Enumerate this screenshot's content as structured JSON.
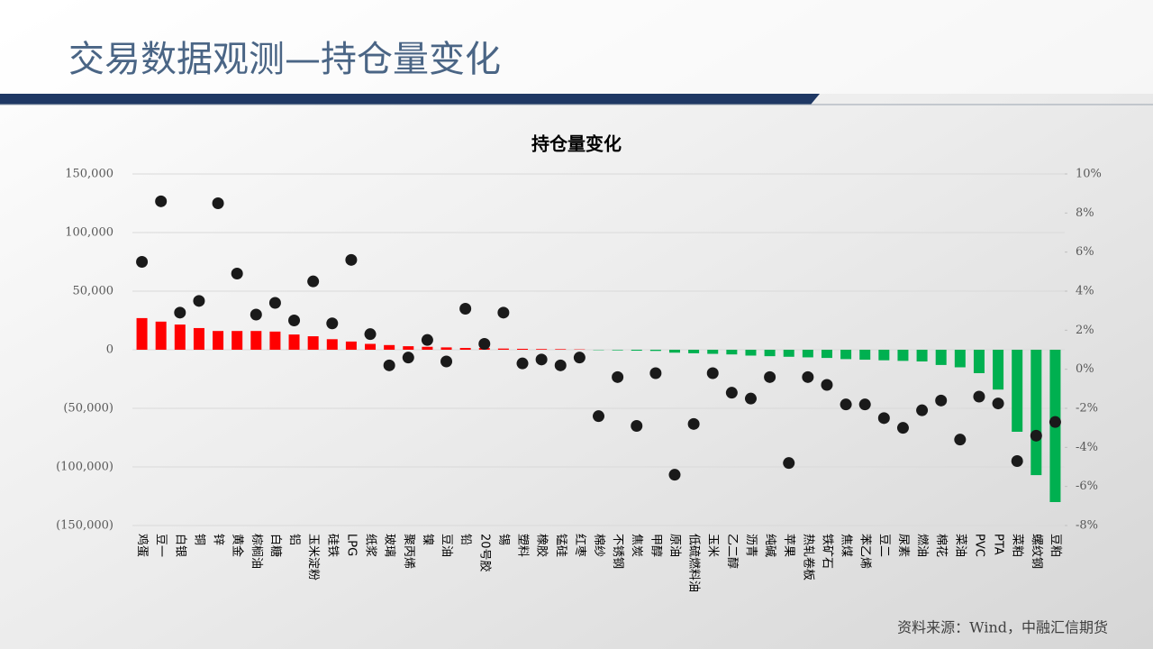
{
  "header": {
    "title": "交易数据观测—持仓量变化"
  },
  "chart_data": {
    "type": "bar",
    "title": "持仓量变化",
    "categories": [
      "鸡蛋",
      "豆一",
      "白银",
      "铜",
      "锌",
      "黄金",
      "棕榈油",
      "白糖",
      "铝",
      "玉米淀粉",
      "硅铁",
      "LPG",
      "纸浆",
      "玻璃",
      "聚丙烯",
      "镍",
      "豆油",
      "铅",
      "20号胶",
      "锡",
      "塑料",
      "橡胶",
      "锰硅",
      "红枣",
      "棉纱",
      "不锈钢",
      "焦炭",
      "甲醇",
      "原油",
      "低硫燃料油",
      "玉米",
      "乙二醇",
      "沥青",
      "纯碱",
      "苹果",
      "热轧卷板",
      "铁矿石",
      "焦煤",
      "苯乙烯",
      "豆二",
      "尿素",
      "燃油",
      "棉花",
      "菜油",
      "PVC",
      "PTA",
      "菜粕",
      "螺纹钢",
      "豆粕"
    ],
    "series": [
      {
        "type": "bar",
        "color": "#ff0000",
        "negative_color": "#00b050",
        "values": [
          27000,
          24000,
          21500,
          18500,
          16000,
          16000,
          16000,
          15500,
          13000,
          11500,
          9000,
          7000,
          5000,
          4000,
          3000,
          2500,
          2000,
          1500,
          1500,
          1000,
          800,
          600,
          500,
          300,
          -300,
          -500,
          -800,
          -1000,
          -2500,
          -3000,
          -3500,
          -4000,
          -5000,
          -5500,
          -6000,
          -6500,
          -7000,
          -8000,
          -8500,
          -9000,
          -9500,
          -10000,
          -13000,
          -15000,
          -20000,
          -34000,
          -70000,
          -107000,
          -130000
        ]
      },
      {
        "type": "scatter",
        "axis": "y2",
        "color": "#1a1a1a",
        "values": [
          5.5,
          8.6,
          2.9,
          3.5,
          8.5,
          4.9,
          2.8,
          3.4,
          2.5,
          4.5,
          2.35,
          5.6,
          1.8,
          0.2,
          0.6,
          1.5,
          0.4,
          3.1,
          1.3,
          2.9,
          0.3,
          0.5,
          0.2,
          0.6,
          -2.4,
          -0.4,
          -2.9,
          -0.2,
          -5.4,
          -2.8,
          -0.2,
          -1.2,
          -1.5,
          -0.4,
          -4.8,
          -0.4,
          -0.8,
          -1.8,
          -1.8,
          -2.5,
          -3.0,
          -2.1,
          -1.6,
          -3.6,
          -1.4,
          -1.75,
          -4.7,
          -3.4,
          -2.7
        ]
      }
    ],
    "ylim": [
      -150000,
      150000
    ],
    "yticks": [
      {
        "value": 150000,
        "label": "150,000"
      },
      {
        "value": 100000,
        "label": "100,000"
      },
      {
        "value": 50000,
        "label": "50,000"
      },
      0,
      {
        "value": -50000,
        "label": "(50,000)"
      },
      {
        "value": -100000,
        "label": "(100,000)"
      },
      {
        "value": -150000,
        "label": "(150,000)"
      }
    ],
    "y2lim": [
      -8,
      10
    ],
    "y2ticks": [
      {
        "value": 10,
        "label": "10%"
      },
      {
        "value": 8,
        "label": "8%"
      },
      {
        "value": 6,
        "label": "6%"
      },
      {
        "value": 4,
        "label": "4%"
      },
      {
        "value": 2,
        "label": "2%"
      },
      {
        "value": 0,
        "label": "0%"
      },
      {
        "value": -2,
        "label": "-2%"
      },
      {
        "value": -4,
        "label": "-4%"
      },
      {
        "value": -6,
        "label": "-6%"
      },
      {
        "value": -8,
        "label": "-8%"
      }
    ],
    "grid": true,
    "negative_tick_color": "#c00000"
  },
  "footer": {
    "source": "资料来源：Wind，中融汇信期货"
  }
}
